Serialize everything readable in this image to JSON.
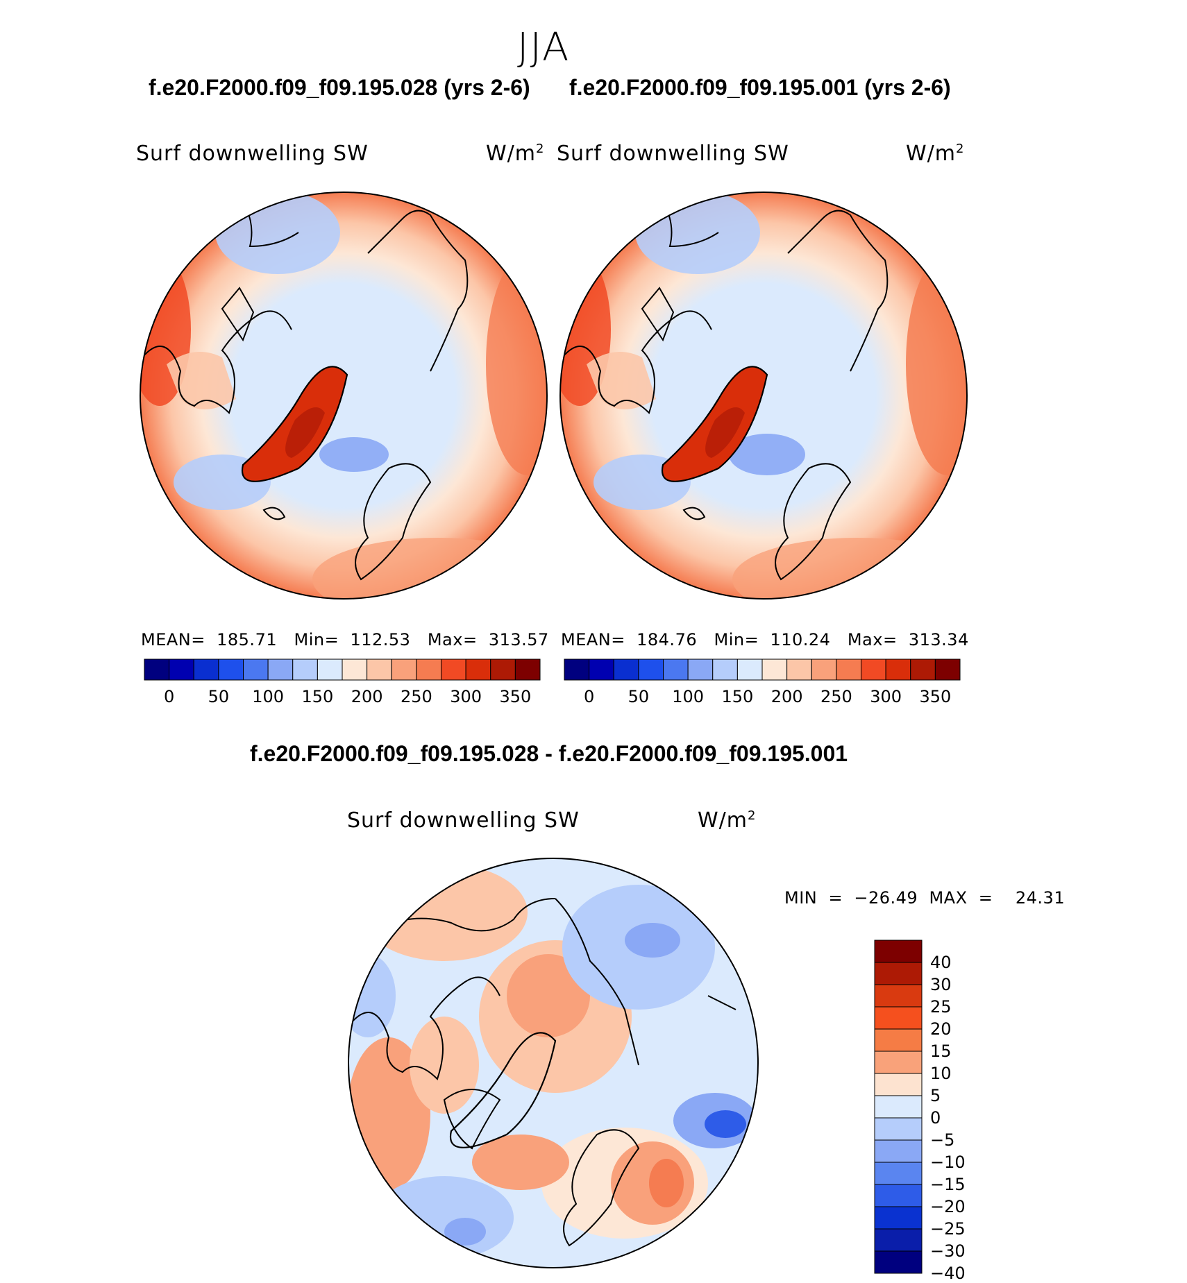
{
  "title": "JJA",
  "panels": [
    {
      "case_label": "f.e20.F2000.f09_f09.195.028 (yrs 2-6)",
      "variable": "Surf  downwelling  SW",
      "units": "W/m",
      "units_exp": "2",
      "mean_label": "MEAN=",
      "mean": "185.71",
      "min_label": "Min=",
      "min": "112.53",
      "max_label": "Max=",
      "max": "313.57"
    },
    {
      "case_label": "f.e20.F2000.f09_f09.195.001 (yrs 2-6)",
      "variable": "Surf  downwelling  SW",
      "units": "W/m",
      "units_exp": "2",
      "mean_label": "MEAN=",
      "mean": "184.76",
      "min_label": "Min=",
      "min": "110.24",
      "max_label": "Max=",
      "max": "313.34"
    }
  ],
  "difference": {
    "case_label": "f.e20.F2000.f09_f09.195.028 - f.e20.F2000.f09_f09.195.001",
    "variable": "Surf  downwelling  SW",
    "units": "W/m",
    "units_exp": "2",
    "minmax_text": "MIN  =  −26.49  MAX  =    24.31"
  },
  "abs_colorbar": {
    "colors": [
      "#00007f",
      "#0000b0",
      "#0a2fd0",
      "#1e50ec",
      "#4b78f0",
      "#8aa8f5",
      "#b5cdfb",
      "#dbeafd",
      "#fde7d6",
      "#fcc6a8",
      "#f9a17b",
      "#f57c51",
      "#f14a24",
      "#d92e0a",
      "#ad1a05",
      "#7d0000"
    ],
    "ticks": [
      "0",
      "50",
      "100",
      "150",
      "200",
      "250",
      "300",
      "350"
    ]
  },
  "diff_colorbar": {
    "colors": [
      "#7d0000",
      "#ad1a05",
      "#d93a10",
      "#f5501e",
      "#f57c45",
      "#f9a27a",
      "#fde3d0",
      "#dbeafd",
      "#b5cdfb",
      "#8aa8f5",
      "#5a85f0",
      "#2e5ce8",
      "#0a32d0",
      "#0a1eaa",
      "#00007f"
    ],
    "ticks": [
      "40",
      "30",
      "25",
      "20",
      "15",
      "10",
      "5",
      "0",
      "−5",
      "−10",
      "−15",
      "−20",
      "−25",
      "−30",
      "−40"
    ]
  }
}
